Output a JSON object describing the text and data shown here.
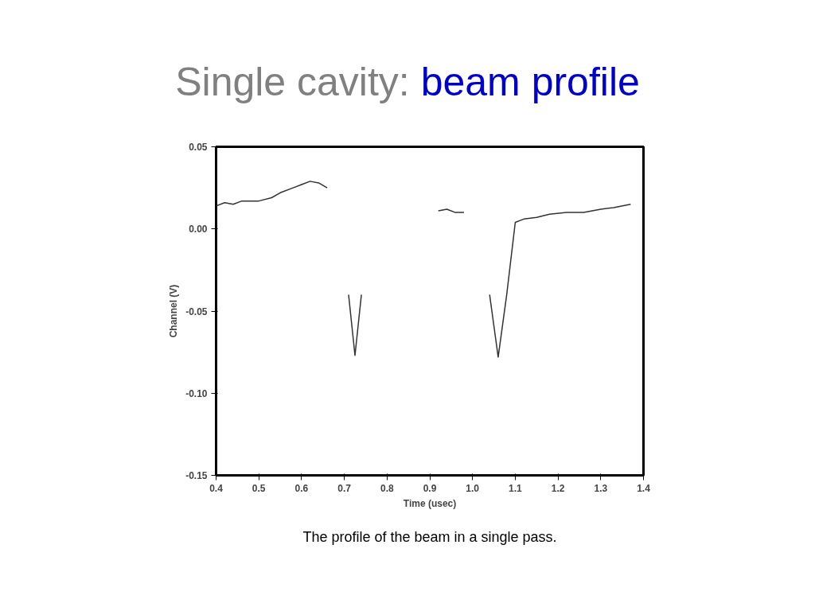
{
  "chart_data": {
    "type": "line",
    "title": "Single cavity:",
    "subtitle": "beam profile",
    "xlabel": "Time (usec)",
    "ylabel": "Channel (V)",
    "annotations": [
      "The profile of the beam in a single pass."
    ],
    "x": [
      0.4,
      0.42,
      0.44,
      0.46,
      0.5,
      0.53,
      0.55,
      0.58,
      0.6,
      0.62,
      0.64,
      0.66,
      0.68,
      0.71,
      0.725,
      0.74,
      0.8,
      0.92,
      0.94,
      0.96,
      0.98,
      1.01,
      1.04,
      1.06,
      1.08,
      1.1,
      1.12,
      1.15,
      1.18,
      1.22,
      1.26,
      1.3,
      1.33,
      1.37
    ],
    "series": [
      {
        "color": "#333333",
        "values": [
          0.014,
          0.016,
          0.015,
          0.017,
          0.017,
          0.019,
          0.022,
          0.025,
          0.027,
          0.029,
          0.028,
          0.025,
          null,
          -0.04,
          -0.077,
          -0.04,
          null,
          0.011,
          0.012,
          0.01,
          0.01,
          null,
          -0.04,
          -0.078,
          -0.04,
          0.004,
          0.006,
          0.007,
          0.009,
          0.01,
          0.01,
          0.012,
          0.013,
          0.015
        ]
      }
    ],
    "xlim": [
      0.4,
      1.4
    ],
    "xticks": [
      0.4,
      0.5,
      0.6,
      0.7,
      0.8,
      0.9,
      {
        "value": 1,
        "label": "1.0"
      },
      1.1,
      1.2,
      1.3,
      1.4
    ],
    "ylim": [
      -0.15,
      0.05
    ],
    "yticks": [
      {
        "value": 0.05,
        "label": "0.05"
      },
      {
        "value": 0,
        "label": "0.00"
      },
      {
        "value": -0.05,
        "label": "-0.05"
      },
      {
        "value": -0.1,
        "label": "-0.10"
      },
      {
        "value": -0.15,
        "label": "-0.15"
      }
    ],
    "grid": false,
    "line_style": "solid"
  }
}
